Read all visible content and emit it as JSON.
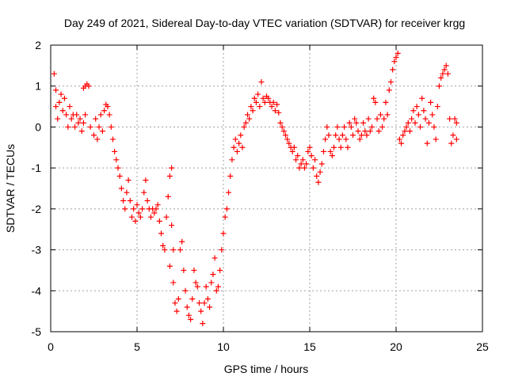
{
  "chart_data": {
    "type": "scatter",
    "title": "Day 249 of 2021, Sidereal Day-to-day VTEC variation (SDTVAR) for receiver krgg",
    "xlabel": "GPS time / hours",
    "ylabel": "SDTVAR / TECUs",
    "xlim": [
      0,
      25
    ],
    "ylim": [
      -5,
      2
    ],
    "x_ticks": [
      "0",
      "5",
      "10",
      "15",
      "20",
      "25"
    ],
    "y_ticks": [
      "-5",
      "-4",
      "-3",
      "-2",
      "-1",
      "0",
      "1",
      "2"
    ],
    "grid": true,
    "marker": "+",
    "color": "#ff0000",
    "series": [
      {
        "name": "krgg",
        "points": [
          [
            0.2,
            1.3
          ],
          [
            0.3,
            0.9
          ],
          [
            0.3,
            0.5
          ],
          [
            0.4,
            0.2
          ],
          [
            0.5,
            0.6
          ],
          [
            0.6,
            0.8
          ],
          [
            0.7,
            0.4
          ],
          [
            0.8,
            0.7
          ],
          [
            0.9,
            0.3
          ],
          [
            1.0,
            0.0
          ],
          [
            1.1,
            0.5
          ],
          [
            1.2,
            0.2
          ],
          [
            1.3,
            0.3
          ],
          [
            1.4,
            0.0
          ],
          [
            1.5,
            0.3
          ],
          [
            1.6,
            0.1
          ],
          [
            1.7,
            0.2
          ],
          [
            1.8,
            -0.1
          ],
          [
            1.9,
            0.1
          ],
          [
            2.0,
            0.3
          ],
          [
            2.0,
            1.0
          ],
          [
            2.1,
            1.05
          ],
          [
            2.2,
            1.0
          ],
          [
            1.9,
            0.95
          ],
          [
            2.3,
            0.0
          ],
          [
            2.5,
            -0.2
          ],
          [
            2.6,
            0.2
          ],
          [
            2.7,
            -0.3
          ],
          [
            2.8,
            0.0
          ],
          [
            2.9,
            0.3
          ],
          [
            3.0,
            -0.1
          ],
          [
            3.1,
            0.4
          ],
          [
            3.2,
            0.55
          ],
          [
            3.3,
            0.5
          ],
          [
            3.4,
            0.3
          ],
          [
            3.5,
            0.0
          ],
          [
            3.6,
            -0.3
          ],
          [
            3.7,
            -0.6
          ],
          [
            3.8,
            -0.8
          ],
          [
            3.9,
            -1.0
          ],
          [
            4.0,
            -1.2
          ],
          [
            4.1,
            -1.5
          ],
          [
            4.2,
            -1.8
          ],
          [
            4.3,
            -2.0
          ],
          [
            4.4,
            -1.6
          ],
          [
            4.5,
            -1.3
          ],
          [
            4.6,
            -1.8
          ],
          [
            4.7,
            -2.2
          ],
          [
            4.8,
            -2.0
          ],
          [
            4.9,
            -2.3
          ],
          [
            5.0,
            -1.9
          ],
          [
            5.1,
            -2.1
          ],
          [
            5.2,
            -2.2
          ],
          [
            5.3,
            -2.0
          ],
          [
            5.4,
            -1.6
          ],
          [
            5.5,
            -1.3
          ],
          [
            5.6,
            -1.8
          ],
          [
            5.7,
            -2.0
          ],
          [
            5.8,
            -2.2
          ],
          [
            5.9,
            -2.0
          ],
          [
            6.0,
            -2.1
          ],
          [
            6.1,
            -2.0
          ],
          [
            6.2,
            -1.9
          ],
          [
            6.3,
            -2.3
          ],
          [
            6.4,
            -2.6
          ],
          [
            6.5,
            -2.9
          ],
          [
            6.6,
            -3.0
          ],
          [
            6.7,
            -2.2
          ],
          [
            6.8,
            -1.7
          ],
          [
            6.9,
            -1.2
          ],
          [
            7.0,
            -1.0
          ],
          [
            7.0,
            -2.4
          ],
          [
            7.1,
            -3.0
          ],
          [
            6.9,
            -3.4
          ],
          [
            7.1,
            -3.8
          ],
          [
            7.2,
            -4.3
          ],
          [
            7.3,
            -4.5
          ],
          [
            7.4,
            -4.2
          ],
          [
            7.5,
            -3.0
          ],
          [
            7.6,
            -2.8
          ],
          [
            7.7,
            -3.5
          ],
          [
            7.8,
            -4.0
          ],
          [
            7.9,
            -4.4
          ],
          [
            8.0,
            -4.6
          ],
          [
            8.1,
            -4.7
          ],
          [
            8.2,
            -4.2
          ],
          [
            8.3,
            -3.5
          ],
          [
            8.4,
            -3.8
          ],
          [
            8.5,
            -3.9
          ],
          [
            8.6,
            -4.3
          ],
          [
            8.7,
            -4.5
          ],
          [
            8.8,
            -4.8
          ],
          [
            8.9,
            -4.3
          ],
          [
            9.0,
            -3.9
          ],
          [
            9.1,
            -4.2
          ],
          [
            9.2,
            -4.4
          ],
          [
            9.3,
            -3.8
          ],
          [
            9.4,
            -3.6
          ],
          [
            9.5,
            -3.2
          ],
          [
            9.6,
            -4.0
          ],
          [
            9.7,
            -3.9
          ],
          [
            9.8,
            -3.5
          ],
          [
            9.9,
            -3.0
          ],
          [
            10.0,
            -2.6
          ],
          [
            10.1,
            -2.2
          ],
          [
            10.2,
            -2.0
          ],
          [
            10.3,
            -1.6
          ],
          [
            10.4,
            -1.2
          ],
          [
            10.5,
            -0.8
          ],
          [
            10.6,
            -0.5
          ],
          [
            10.7,
            -0.3
          ],
          [
            10.8,
            -0.6
          ],
          [
            10.9,
            -0.4
          ],
          [
            11.0,
            -0.2
          ],
          [
            11.1,
            -0.5
          ],
          [
            11.2,
            0.0
          ],
          [
            11.3,
            0.1
          ],
          [
            11.4,
            0.3
          ],
          [
            11.5,
            0.2
          ],
          [
            11.6,
            0.5
          ],
          [
            11.7,
            0.4
          ],
          [
            11.8,
            0.7
          ],
          [
            11.9,
            0.6
          ],
          [
            12.0,
            0.8
          ],
          [
            12.1,
            0.5
          ],
          [
            12.2,
            1.1
          ],
          [
            12.3,
            0.7
          ],
          [
            12.4,
            0.6
          ],
          [
            12.5,
            0.75
          ],
          [
            12.6,
            0.7
          ],
          [
            12.7,
            0.6
          ],
          [
            12.8,
            0.5
          ],
          [
            12.9,
            0.6
          ],
          [
            13.0,
            0.4
          ],
          [
            13.1,
            0.55
          ],
          [
            13.2,
            0.35
          ],
          [
            13.3,
            0.1
          ],
          [
            13.4,
            0.0
          ],
          [
            13.5,
            -0.1
          ],
          [
            13.6,
            -0.2
          ],
          [
            13.7,
            -0.3
          ],
          [
            13.8,
            -0.4
          ],
          [
            13.9,
            -0.5
          ],
          [
            14.0,
            -0.6
          ],
          [
            14.1,
            -0.5
          ],
          [
            14.2,
            -0.8
          ],
          [
            14.3,
            -0.7
          ],
          [
            14.4,
            -1.0
          ],
          [
            14.5,
            -0.9
          ],
          [
            14.6,
            -0.8
          ],
          [
            14.7,
            -1.0
          ],
          [
            14.8,
            -0.9
          ],
          [
            14.9,
            -0.6
          ],
          [
            15.0,
            -0.5
          ],
          [
            15.1,
            -0.7
          ],
          [
            15.2,
            -1.0
          ],
          [
            15.3,
            -0.8
          ],
          [
            15.4,
            -1.2
          ],
          [
            15.5,
            -1.35
          ],
          [
            15.6,
            -1.1
          ],
          [
            15.7,
            -0.9
          ],
          [
            15.8,
            -0.6
          ],
          [
            15.9,
            -0.3
          ],
          [
            16.0,
            0.0
          ],
          [
            16.1,
            -0.2
          ],
          [
            16.2,
            -0.6
          ],
          [
            16.3,
            -0.7
          ],
          [
            16.4,
            -0.5
          ],
          [
            16.5,
            -0.2
          ],
          [
            16.6,
            0.0
          ],
          [
            16.7,
            -0.3
          ],
          [
            16.8,
            -0.5
          ],
          [
            16.9,
            -0.2
          ],
          [
            17.0,
            0.0
          ],
          [
            17.1,
            -0.3
          ],
          [
            17.2,
            -0.5
          ],
          [
            17.3,
            0.1
          ],
          [
            17.4,
            0.0
          ],
          [
            17.5,
            -0.2
          ],
          [
            17.6,
            0.2
          ],
          [
            17.7,
            0.1
          ],
          [
            17.8,
            -0.1
          ],
          [
            17.9,
            -0.3
          ],
          [
            18.0,
            -0.2
          ],
          [
            18.1,
            0.1
          ],
          [
            18.2,
            -0.1
          ],
          [
            18.3,
            -0.2
          ],
          [
            18.4,
            0.2
          ],
          [
            18.5,
            -0.1
          ],
          [
            18.6,
            0.0
          ],
          [
            18.7,
            0.7
          ],
          [
            18.8,
            0.6
          ],
          [
            18.9,
            0.2
          ],
          [
            19.0,
            -0.1
          ],
          [
            19.1,
            0.3
          ],
          [
            19.2,
            0.0
          ],
          [
            19.3,
            0.2
          ],
          [
            19.4,
            0.6
          ],
          [
            19.5,
            0.3
          ],
          [
            19.6,
            0.9
          ],
          [
            19.7,
            1.1
          ],
          [
            19.8,
            1.4
          ],
          [
            19.9,
            1.6
          ],
          [
            20.0,
            1.7
          ],
          [
            20.1,
            1.8
          ],
          [
            20.2,
            -0.3
          ],
          [
            20.3,
            -0.4
          ],
          [
            20.4,
            -0.2
          ],
          [
            20.5,
            -0.1
          ],
          [
            20.6,
            0.0
          ],
          [
            20.7,
            0.1
          ],
          [
            20.8,
            -0.1
          ],
          [
            20.9,
            0.2
          ],
          [
            21.0,
            0.4
          ],
          [
            21.1,
            0.1
          ],
          [
            21.2,
            0.5
          ],
          [
            21.3,
            0.3
          ],
          [
            21.4,
            0.0
          ],
          [
            21.5,
            0.7
          ],
          [
            21.6,
            0.4
          ],
          [
            21.7,
            0.2
          ],
          [
            21.8,
            -0.4
          ],
          [
            21.9,
            0.1
          ],
          [
            22.0,
            0.6
          ],
          [
            22.1,
            0.3
          ],
          [
            22.2,
            0.0
          ],
          [
            22.3,
            -0.3
          ],
          [
            22.4,
            0.5
          ],
          [
            22.5,
            1.0
          ],
          [
            22.6,
            1.2
          ],
          [
            22.7,
            1.3
          ],
          [
            22.8,
            1.4
          ],
          [
            22.9,
            1.5
          ],
          [
            23.0,
            1.3
          ],
          [
            23.1,
            0.2
          ],
          [
            23.2,
            -0.4
          ],
          [
            23.3,
            -0.2
          ],
          [
            23.4,
            0.2
          ],
          [
            23.5,
            0.1
          ],
          [
            23.5,
            -0.3
          ]
        ]
      }
    ]
  }
}
